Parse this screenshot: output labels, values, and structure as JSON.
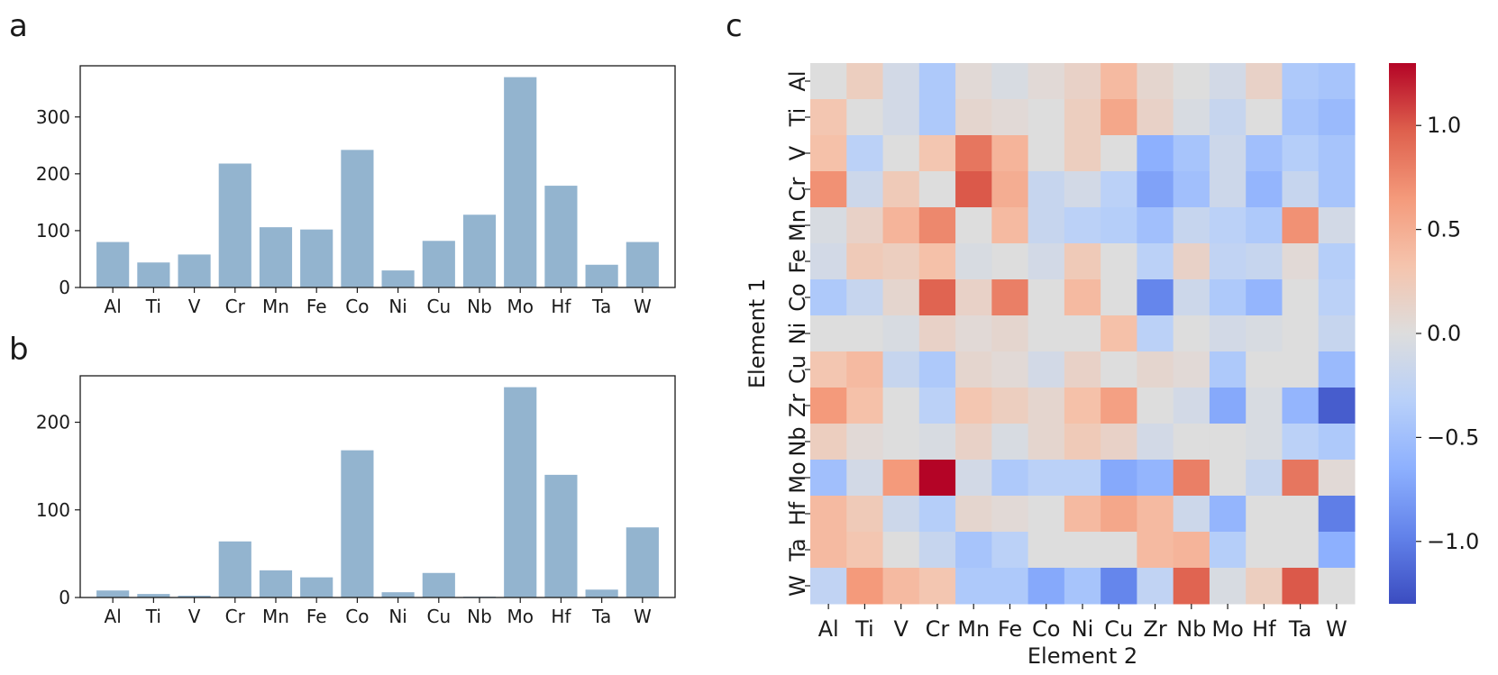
{
  "panels": {
    "a": "a",
    "b": "b",
    "c": "c"
  },
  "chart_data": [
    {
      "type": "bar",
      "panel": "a",
      "categories": [
        "Al",
        "Ti",
        "V",
        "Cr",
        "Mn",
        "Fe",
        "Co",
        "Ni",
        "Cu",
        "Nb",
        "Mo",
        "Hf",
        "Ta",
        "W"
      ],
      "values": [
        80,
        44,
        58,
        218,
        106,
        102,
        242,
        30,
        82,
        128,
        370,
        179,
        40,
        80
      ],
      "ylim": [
        0,
        390
      ],
      "yticks": [
        0,
        100,
        200,
        300
      ],
      "bar_color": "#93b4cf",
      "title": "",
      "xlabel": "",
      "ylabel": ""
    },
    {
      "type": "bar",
      "panel": "b",
      "categories": [
        "Al",
        "Ti",
        "V",
        "Cr",
        "Mn",
        "Fe",
        "Co",
        "Ni",
        "Cu",
        "Nb",
        "Mo",
        "Hf",
        "Ta",
        "W"
      ],
      "values": [
        8,
        4,
        2,
        64,
        31,
        23,
        168,
        6,
        28,
        1,
        240,
        140,
        9,
        80
      ],
      "ylim": [
        0,
        253
      ],
      "yticks": [
        0,
        100,
        200
      ],
      "bar_color": "#93b4cf",
      "title": "",
      "xlabel": "",
      "ylabel": ""
    },
    {
      "type": "heatmap",
      "panel": "c",
      "x_categories": [
        "Al",
        "Ti",
        "V",
        "Cr",
        "Mn",
        "Fe",
        "Co",
        "Ni",
        "Cu",
        "Zr",
        "Nb",
        "Mo",
        "Hf",
        "Ta",
        "W"
      ],
      "y_categories": [
        "Al",
        "Ti",
        "V",
        "Cr",
        "Mn",
        "Fe",
        "Co",
        "Ni",
        "Cu",
        "Zr",
        "Nb",
        "Mo",
        "Hf",
        "Ta",
        "W"
      ],
      "xlabel": "Element 2",
      "ylabel": "Element 1",
      "colormap": "coolwarm",
      "vmin": -1.3,
      "vmax": 1.3,
      "colorbar_ticks": [
        1.0,
        0.5,
        0.0,
        -0.5,
        -1.0
      ],
      "colorbar_tick_labels": [
        "1.0",
        "0.5",
        "0.0",
        "−0.5",
        "−1.0"
      ],
      "values": [
        [
          0.0,
          0.2,
          -0.1,
          -0.4,
          0.05,
          -0.05,
          0.05,
          0.15,
          0.4,
          0.1,
          0.0,
          -0.1,
          0.15,
          -0.4,
          -0.45
        ],
        [
          0.3,
          0.0,
          -0.1,
          -0.4,
          0.1,
          0.05,
          0.0,
          0.2,
          0.55,
          0.15,
          -0.05,
          -0.2,
          0.0,
          -0.45,
          -0.55
        ],
        [
          0.35,
          -0.3,
          0.0,
          0.3,
          0.85,
          0.45,
          0.0,
          0.2,
          0.0,
          -0.65,
          -0.45,
          -0.15,
          -0.5,
          -0.35,
          -0.45
        ],
        [
          0.7,
          -0.15,
          0.25,
          0.0,
          1.0,
          0.5,
          -0.2,
          -0.1,
          -0.3,
          -0.75,
          -0.5,
          -0.15,
          -0.6,
          -0.2,
          -0.45
        ],
        [
          -0.05,
          0.15,
          0.45,
          0.75,
          0.0,
          0.4,
          -0.2,
          -0.3,
          -0.35,
          -0.5,
          -0.2,
          -0.3,
          -0.4,
          0.7,
          -0.1
        ],
        [
          -0.1,
          0.25,
          0.2,
          0.35,
          -0.05,
          0.0,
          -0.1,
          0.25,
          0.0,
          -0.3,
          0.15,
          -0.25,
          -0.2,
          0.05,
          -0.35
        ],
        [
          -0.4,
          -0.2,
          0.1,
          0.95,
          0.15,
          0.8,
          0.0,
          0.4,
          0.0,
          -0.95,
          -0.15,
          -0.4,
          -0.6,
          0.0,
          -0.3
        ],
        [
          0.0,
          0.0,
          -0.05,
          0.15,
          0.05,
          0.1,
          0.0,
          0.0,
          0.35,
          -0.3,
          0.0,
          -0.1,
          -0.05,
          0.0,
          -0.2
        ],
        [
          0.3,
          0.4,
          -0.2,
          -0.4,
          0.1,
          0.05,
          -0.1,
          0.15,
          0.0,
          0.1,
          0.05,
          -0.4,
          0.0,
          0.0,
          -0.55
        ],
        [
          0.65,
          0.35,
          0.0,
          -0.3,
          0.3,
          0.2,
          0.1,
          0.35,
          0.6,
          0.0,
          -0.1,
          -0.7,
          -0.05,
          -0.6,
          -1.2
        ],
        [
          0.2,
          0.05,
          0.0,
          -0.05,
          0.15,
          -0.05,
          0.1,
          0.25,
          0.15,
          -0.1,
          0.0,
          0.0,
          -0.05,
          -0.3,
          -0.4
        ],
        [
          -0.5,
          -0.1,
          0.65,
          1.3,
          -0.1,
          -0.4,
          -0.3,
          -0.3,
          -0.7,
          -0.6,
          0.8,
          0.0,
          -0.2,
          0.85,
          0.05
        ],
        [
          0.4,
          0.25,
          -0.15,
          -0.35,
          0.1,
          0.05,
          0.0,
          0.4,
          0.55,
          0.4,
          -0.15,
          -0.6,
          0.0,
          0.0,
          -1.0
        ],
        [
          0.4,
          0.3,
          0.0,
          -0.2,
          -0.45,
          -0.3,
          0.0,
          0.0,
          0.0,
          0.4,
          0.45,
          -0.35,
          0.0,
          0.0,
          -0.65
        ],
        [
          -0.25,
          0.65,
          0.4,
          0.3,
          -0.4,
          -0.4,
          -0.7,
          -0.45,
          -0.95,
          -0.25,
          0.95,
          -0.05,
          0.2,
          1.0,
          0.0
        ]
      ]
    }
  ]
}
